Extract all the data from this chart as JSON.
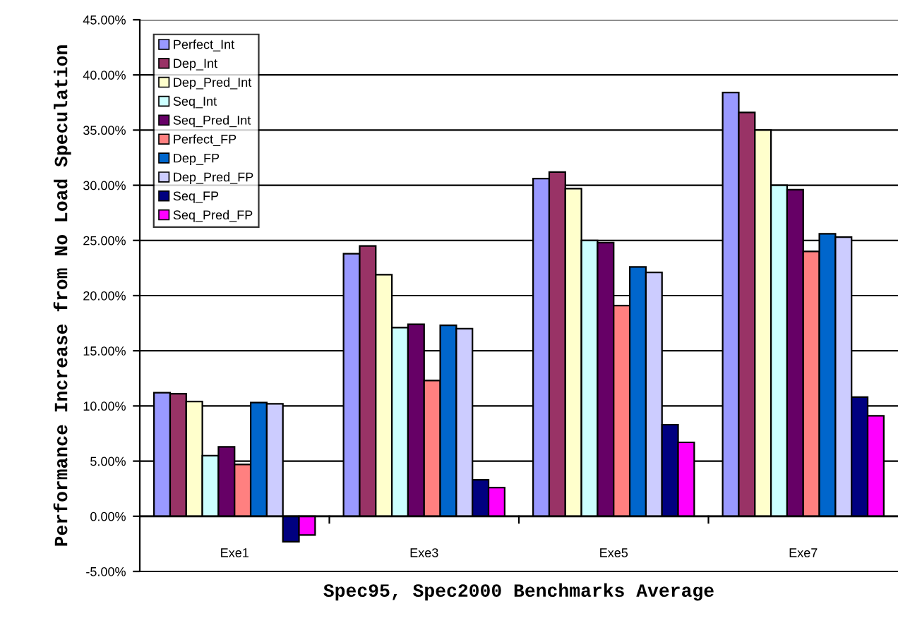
{
  "chart_data": {
    "type": "bar",
    "xlabel": "Spec95, Spec2000 Benchmarks Average",
    "ylabel": "Performance Increase from No Load Speculation",
    "categories": [
      "Exe1",
      "Exe3",
      "Exe5",
      "Exe7"
    ],
    "series": [
      {
        "name": "Perfect_Int",
        "color": "#9999ff",
        "values": [
          11.2,
          23.8,
          30.6,
          38.4
        ]
      },
      {
        "name": "Dep_Int",
        "color": "#993366",
        "values": [
          11.1,
          24.5,
          31.2,
          36.6
        ]
      },
      {
        "name": "Dep_Pred_Int",
        "color": "#ffffcc",
        "values": [
          10.4,
          21.9,
          29.7,
          35.0
        ]
      },
      {
        "name": "Seq_Int",
        "color": "#ccffff",
        "values": [
          5.5,
          17.1,
          25.0,
          30.0
        ]
      },
      {
        "name": "Seq_Pred_Int",
        "color": "#660066",
        "values": [
          6.3,
          17.4,
          24.8,
          29.6
        ]
      },
      {
        "name": "Perfect_FP",
        "color": "#ff8080",
        "values": [
          4.7,
          12.3,
          19.1,
          24.0
        ]
      },
      {
        "name": "Dep_FP",
        "color": "#0066cc",
        "values": [
          10.3,
          17.3,
          22.6,
          25.6
        ]
      },
      {
        "name": "Dep_Pred_FP",
        "color": "#ccccff",
        "values": [
          10.2,
          17.0,
          22.1,
          25.3
        ]
      },
      {
        "name": "Seq_FP",
        "color": "#000080",
        "values": [
          -2.3,
          3.3,
          8.3,
          10.8
        ]
      },
      {
        "name": "Seq_Pred_FP",
        "color": "#ff00ff",
        "values": [
          -1.7,
          2.6,
          6.7,
          9.1
        ]
      }
    ],
    "ylim": [
      -5,
      45
    ],
    "yticks": [
      {
        "value": -5,
        "label": "-5.00%"
      },
      {
        "value": 0,
        "label": "0.00%"
      },
      {
        "value": 5,
        "label": "5.00%"
      },
      {
        "value": 10,
        "label": "10.00%"
      },
      {
        "value": 15,
        "label": "15.00%"
      },
      {
        "value": 20,
        "label": "20.00%"
      },
      {
        "value": 25,
        "label": "25.00%"
      },
      {
        "value": 30,
        "label": "30.00%"
      },
      {
        "value": 35,
        "label": "35.00%"
      },
      {
        "value": 40,
        "label": "40.00%"
      },
      {
        "value": 45,
        "label": "45.00%"
      }
    ],
    "grid": "y",
    "legend": "top left"
  }
}
